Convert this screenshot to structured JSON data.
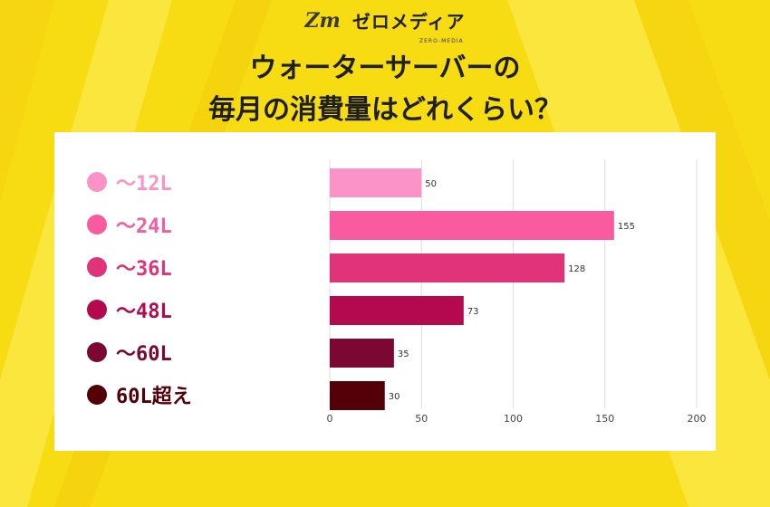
{
  "logo": {
    "mark": "Zm",
    "text": "ゼロメディア",
    "sub": "ZERO-MEDIA"
  },
  "title": {
    "line1": "ウォーターサーバーの",
    "line2": "毎月の消費量はどれくらい？"
  },
  "chart_data": {
    "type": "bar",
    "orientation": "horizontal",
    "title": "ウォーターサーバーの毎月の消費量はどれくらい？",
    "categories": [
      "～12L",
      "～24L",
      "～36L",
      "～48L",
      "～60L",
      "60L超え"
    ],
    "values": [
      50,
      155,
      128,
      73,
      35,
      30
    ],
    "colors": [
      "#fb93c8",
      "#f95aa0",
      "#e0337a",
      "#b4094e",
      "#7d0733",
      "#530008"
    ],
    "xlim": [
      0,
      200
    ],
    "xticks": [
      0,
      50,
      100,
      150,
      200
    ],
    "grid": true,
    "data_labels": true,
    "legend": "left"
  }
}
